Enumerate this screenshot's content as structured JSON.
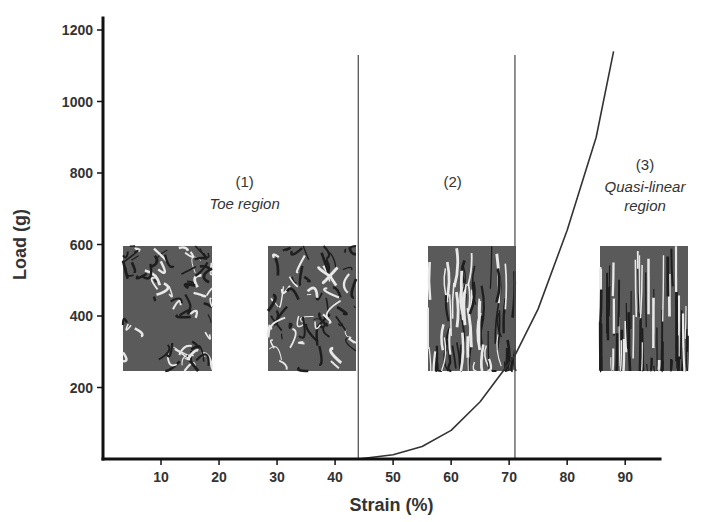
{
  "chart_data": {
    "type": "line",
    "x_label": "Strain (%)",
    "y_label": "Load (g)",
    "x": [
      44,
      50,
      55,
      60,
      65,
      71,
      75,
      80,
      85,
      88
    ],
    "values": [
      0,
      12,
      35,
      80,
      160,
      290,
      420,
      640,
      900,
      1140
    ],
    "color": "#333333",
    "xlim": [
      0,
      96
    ],
    "xticks": [
      10,
      20,
      30,
      40,
      50,
      60,
      70,
      80,
      90
    ],
    "ylim": [
      0,
      1200
    ],
    "yticks": [
      200,
      400,
      600,
      800,
      1000,
      1200
    ],
    "grid": false,
    "region_bounds": [
      44,
      71
    ],
    "regions": [
      {
        "number": "(1)",
        "name": "Toe region"
      },
      {
        "number": "(2)",
        "name": null
      },
      {
        "number": "(3)",
        "name": "Quasi-linear region"
      }
    ]
  }
}
